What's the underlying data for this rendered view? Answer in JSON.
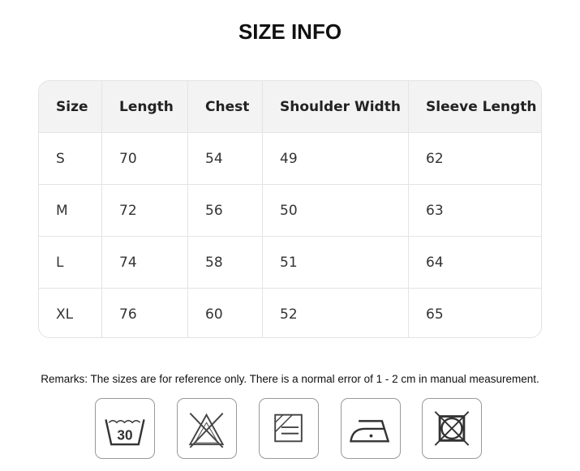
{
  "title": "SIZE INFO",
  "table": {
    "headers": [
      "Size",
      "Length",
      "Chest",
      "Shoulder Width",
      "Sleeve Length"
    ],
    "rows": [
      [
        "S",
        "70",
        "54",
        "49",
        "62"
      ],
      [
        "M",
        "72",
        "56",
        "50",
        "63"
      ],
      [
        "L",
        "74",
        "58",
        "51",
        "64"
      ],
      [
        "XL",
        "76",
        "60",
        "52",
        "65"
      ]
    ]
  },
  "remarks": "Remarks: The sizes are for reference only. There is a normal error of 1 - 2 cm in manual measurement.",
  "care_icons": [
    {
      "name": "wash-30-icon",
      "label": "30"
    },
    {
      "name": "do-not-bleach-icon"
    },
    {
      "name": "line-dry-in-shade-icon"
    },
    {
      "name": "iron-low-heat-icon"
    },
    {
      "name": "do-not-tumble-dry-icon"
    }
  ]
}
